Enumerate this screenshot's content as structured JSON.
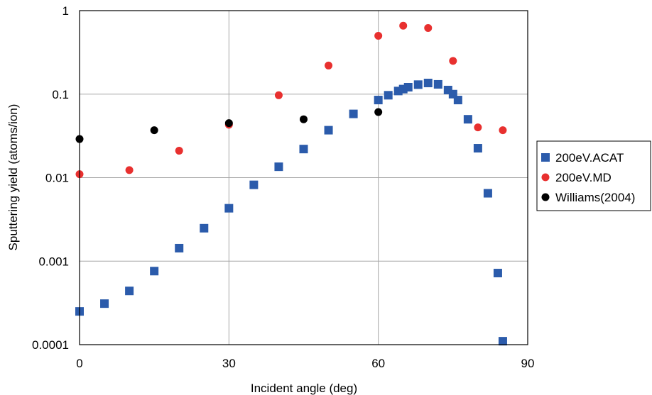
{
  "chart_data": {
    "type": "scatter",
    "title": "",
    "xlabel": "Incident angle (deg)",
    "ylabel": "Sputtering yield (atoms/ion)",
    "xlim": [
      0,
      90
    ],
    "ylim": [
      0.0001,
      1
    ],
    "yscale": "log",
    "grid": true,
    "legend_position": "right",
    "x_ticks": [
      "0",
      "30",
      "60",
      "90"
    ],
    "y_ticks": [
      "0.0001",
      "0.001",
      "0.01",
      "0.1",
      "1"
    ],
    "series": [
      {
        "name": "200eV.ACAT",
        "marker": "square",
        "color": "#2b5bab",
        "x": [
          0,
          5,
          10,
          15,
          20,
          25,
          30,
          35,
          40,
          45,
          50,
          55,
          60,
          62,
          64,
          65,
          66,
          68,
          70,
          72,
          74,
          75,
          76,
          78,
          80,
          82,
          84,
          85
        ],
        "y": [
          0.00025,
          0.00031,
          0.00044,
          0.00076,
          0.00143,
          0.00248,
          0.0043,
          0.0082,
          0.0135,
          0.022,
          0.037,
          0.058,
          0.085,
          0.097,
          0.109,
          0.115,
          0.121,
          0.13,
          0.136,
          0.131,
          0.112,
          0.1,
          0.085,
          0.05,
          0.0225,
          0.0065,
          0.00072,
          0.00011
        ]
      },
      {
        "name": "200eV.MD",
        "marker": "circle",
        "color": "#e8302f",
        "x": [
          0,
          10,
          20,
          30,
          40,
          50,
          60,
          65,
          70,
          75,
          80,
          85
        ],
        "y": [
          0.011,
          0.0123,
          0.021,
          0.043,
          0.097,
          0.22,
          0.5,
          0.66,
          0.62,
          0.25,
          0.04,
          0.037
        ]
      },
      {
        "name": "Williams(2004)",
        "marker": "circle",
        "color": "#000000",
        "x": [
          0,
          15,
          30,
          45,
          60
        ],
        "y": [
          0.029,
          0.037,
          0.045,
          0.05,
          0.061
        ]
      }
    ]
  }
}
